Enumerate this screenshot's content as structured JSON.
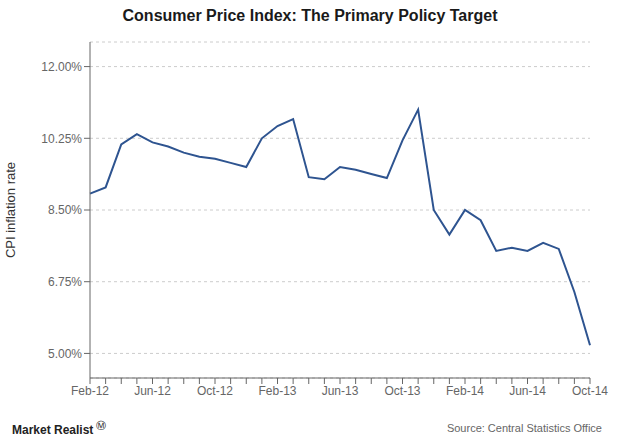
{
  "chart_data": {
    "type": "line",
    "title": "Consumer Price Index: The Primary Policy Target",
    "y_label": "CPI inflation rate",
    "annotations": [
      "Market Realist",
      "Ⓜ",
      "Source: Central Statistics Office"
    ],
    "categories": [
      "Feb-12",
      null,
      null,
      null,
      "Jun-12",
      null,
      null,
      null,
      "Oct-12",
      null,
      null,
      null,
      "Feb-13",
      null,
      null,
      null,
      "Jun-13",
      null,
      null,
      null,
      "Oct-13",
      null,
      null,
      null,
      "Feb-14",
      null,
      null,
      null,
      "Jun-14",
      null,
      null,
      null,
      "Oct-14"
    ],
    "values": [
      8.9,
      9.05,
      10.1,
      10.35,
      10.15,
      10.05,
      9.9,
      9.8,
      9.75,
      9.65,
      9.55,
      10.25,
      10.55,
      10.72,
      9.3,
      9.25,
      9.55,
      9.48,
      9.38,
      9.28,
      10.2,
      10.95,
      8.5,
      7.9,
      8.5,
      8.25,
      7.5,
      7.58,
      7.5,
      7.7,
      7.55,
      6.5,
      5.2
    ],
    "color": "#2e5490",
    "ylim": [
      4.4,
      12.6
    ],
    "yticks": [
      {
        "value": 5.0,
        "label": "5.00%"
      },
      {
        "value": 6.75,
        "label": "6.75%"
      },
      {
        "value": 8.5,
        "label": "8.50%"
      },
      {
        "value": 10.25,
        "label": "10.25%"
      },
      {
        "value": 12.0,
        "label": "12.00%"
      }
    ],
    "grid": true
  }
}
